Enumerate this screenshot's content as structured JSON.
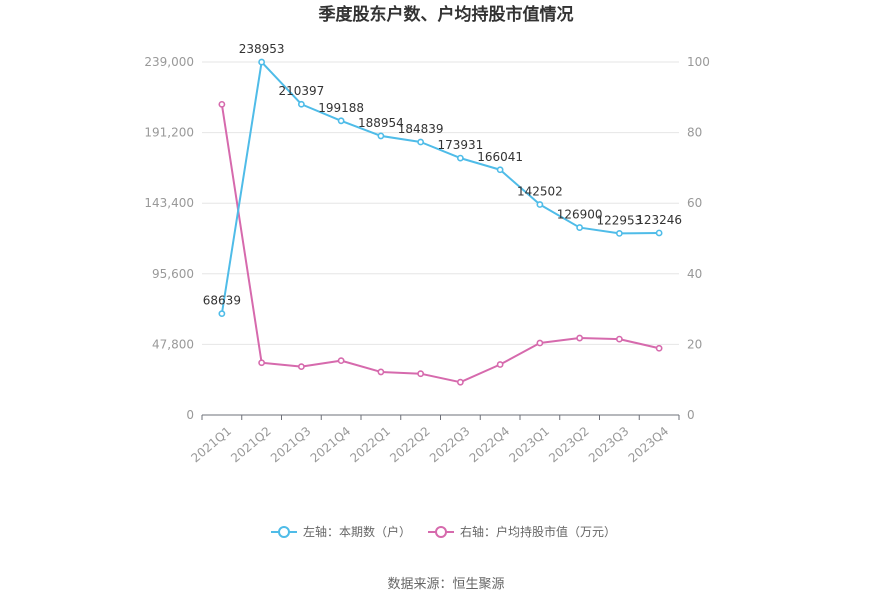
{
  "chart_data": {
    "type": "line",
    "title": "季度股东户数、户均持股市值情况",
    "categories": [
      "2021Q1",
      "2021Q2",
      "2021Q3",
      "2021Q4",
      "2022Q1",
      "2022Q2",
      "2022Q3",
      "2022Q4",
      "2023Q1",
      "2023Q2",
      "2023Q3",
      "2023Q4"
    ],
    "left_axis": {
      "ticks": [
        "0",
        "47,800",
        "95,600",
        "143,400",
        "191,200",
        "239,000"
      ],
      "range": [
        0,
        239000
      ]
    },
    "right_axis": {
      "ticks": [
        "0",
        "20",
        "40",
        "60",
        "80",
        "100"
      ],
      "range": [
        0,
        100
      ]
    },
    "series": [
      {
        "name": "左轴：本期数（户）",
        "axis": "left",
        "color": "#4fbce8",
        "values": [
          68639,
          238953,
          210397,
          199188,
          188954,
          184839,
          173931,
          166041,
          142502,
          126900,
          122953,
          123246
        ],
        "labels": [
          "68639",
          "238953",
          "210397",
          "199188",
          "188954",
          "184839",
          "173931",
          "166041",
          "142502",
          "126900",
          "122953",
          "123246"
        ]
      },
      {
        "name": "右轴：户均持股市值（万元）",
        "axis": "right",
        "color": "#d66aad",
        "values": [
          88.0,
          14.8,
          13.7,
          15.4,
          12.2,
          11.7,
          9.3,
          14.3,
          20.4,
          21.8,
          21.5,
          18.9
        ]
      }
    ],
    "grid": true,
    "legend_position": "bottom"
  },
  "source": "数据来源：恒生聚源"
}
